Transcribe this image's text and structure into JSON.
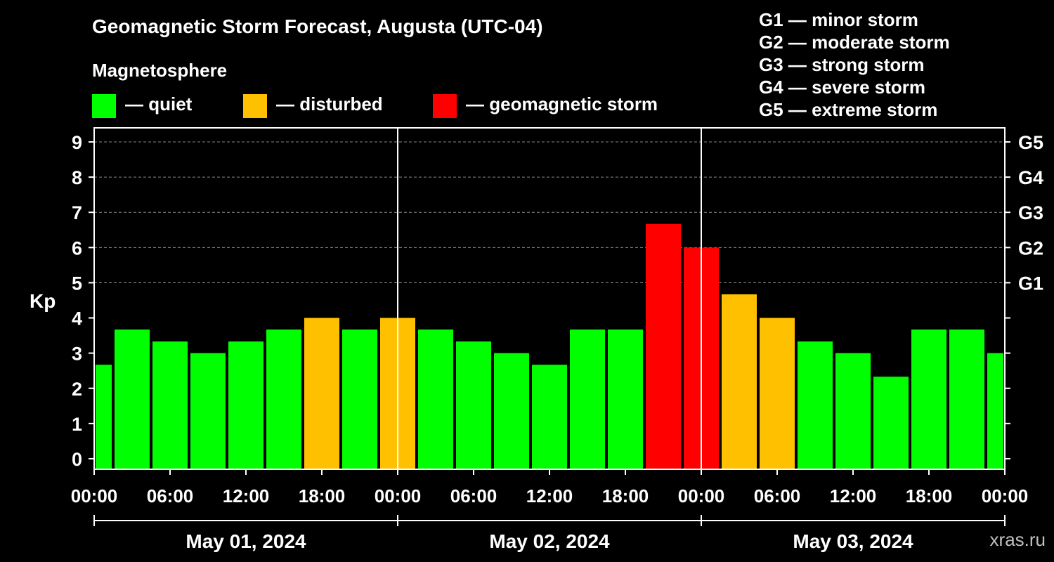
{
  "header": {
    "title": "Geomagnetic Storm Forecast, Augusta (UTC-04)",
    "magnetosphere_label": "Magnetosphere"
  },
  "legend": [
    {
      "color": "#00ff00",
      "label": "— quiet",
      "name": "quiet"
    },
    {
      "color": "#ffc000",
      "label": "— disturbed",
      "name": "disturbed"
    },
    {
      "color": "#ff0000",
      "label": "— geomagnetic storm",
      "name": "storm"
    }
  ],
  "storm_scale": [
    "G1 — minor storm",
    "G2 — moderate storm",
    "G3 — strong storm",
    "G4 — severe storm",
    "G5 — extreme storm"
  ],
  "watermark": "xras.ru",
  "colors": {
    "quiet": "#00ff00",
    "disturbed": "#ffc000",
    "storm": "#ff0000"
  },
  "chart_data": {
    "type": "bar",
    "ylabel": "Kp",
    "ylim": [
      -0.3,
      9.4
    ],
    "yticks": [
      "0",
      "1",
      "2",
      "3",
      "4",
      "5",
      "6",
      "7",
      "8",
      "9"
    ],
    "right_ticks": [
      {
        "value": 5,
        "label": "G1"
      },
      {
        "value": 6,
        "label": "G2"
      },
      {
        "value": 7,
        "label": "G3"
      },
      {
        "value": 8,
        "label": "G4"
      },
      {
        "value": 9,
        "label": "G5"
      }
    ],
    "xlim_hours": [
      0,
      72
    ],
    "xticks": [
      "00:00",
      "06:00",
      "12:00",
      "18:00",
      "00:00",
      "06:00",
      "12:00",
      "18:00",
      "00:00",
      "06:00",
      "12:00",
      "18:00",
      "00:00"
    ],
    "days": [
      "May 01, 2024",
      "May 02, 2024",
      "May 03, 2024"
    ],
    "bars": [
      {
        "start": 0,
        "end": 1.5,
        "kp": 2.67,
        "level": "quiet"
      },
      {
        "start": 1.5,
        "end": 4.5,
        "kp": 3.67,
        "level": "quiet"
      },
      {
        "start": 4.5,
        "end": 7.5,
        "kp": 3.33,
        "level": "quiet"
      },
      {
        "start": 7.5,
        "end": 10.5,
        "kp": 3.0,
        "level": "quiet"
      },
      {
        "start": 10.5,
        "end": 13.5,
        "kp": 3.33,
        "level": "quiet"
      },
      {
        "start": 13.5,
        "end": 16.5,
        "kp": 3.67,
        "level": "quiet"
      },
      {
        "start": 16.5,
        "end": 19.5,
        "kp": 4.0,
        "level": "disturbed"
      },
      {
        "start": 19.5,
        "end": 22.5,
        "kp": 3.67,
        "level": "quiet"
      },
      {
        "start": 22.5,
        "end": 25.5,
        "kp": 4.0,
        "level": "disturbed"
      },
      {
        "start": 25.5,
        "end": 28.5,
        "kp": 3.67,
        "level": "quiet"
      },
      {
        "start": 28.5,
        "end": 31.5,
        "kp": 3.33,
        "level": "quiet"
      },
      {
        "start": 31.5,
        "end": 34.5,
        "kp": 3.0,
        "level": "quiet"
      },
      {
        "start": 34.5,
        "end": 37.5,
        "kp": 2.67,
        "level": "quiet"
      },
      {
        "start": 37.5,
        "end": 40.5,
        "kp": 3.67,
        "level": "quiet"
      },
      {
        "start": 40.5,
        "end": 43.5,
        "kp": 3.67,
        "level": "quiet"
      },
      {
        "start": 43.5,
        "end": 46.5,
        "kp": 6.67,
        "level": "storm"
      },
      {
        "start": 46.5,
        "end": 49.5,
        "kp": 6.0,
        "level": "storm"
      },
      {
        "start": 49.5,
        "end": 52.5,
        "kp": 4.67,
        "level": "disturbed"
      },
      {
        "start": 52.5,
        "end": 55.5,
        "kp": 4.0,
        "level": "disturbed"
      },
      {
        "start": 55.5,
        "end": 58.5,
        "kp": 3.33,
        "level": "quiet"
      },
      {
        "start": 58.5,
        "end": 61.5,
        "kp": 3.0,
        "level": "quiet"
      },
      {
        "start": 61.5,
        "end": 64.5,
        "kp": 2.33,
        "level": "quiet"
      },
      {
        "start": 64.5,
        "end": 67.5,
        "kp": 3.67,
        "level": "quiet"
      },
      {
        "start": 67.5,
        "end": 70.5,
        "kp": 3.67,
        "level": "quiet"
      },
      {
        "start": 70.5,
        "end": 72,
        "kp": 3.0,
        "level": "quiet"
      }
    ]
  }
}
